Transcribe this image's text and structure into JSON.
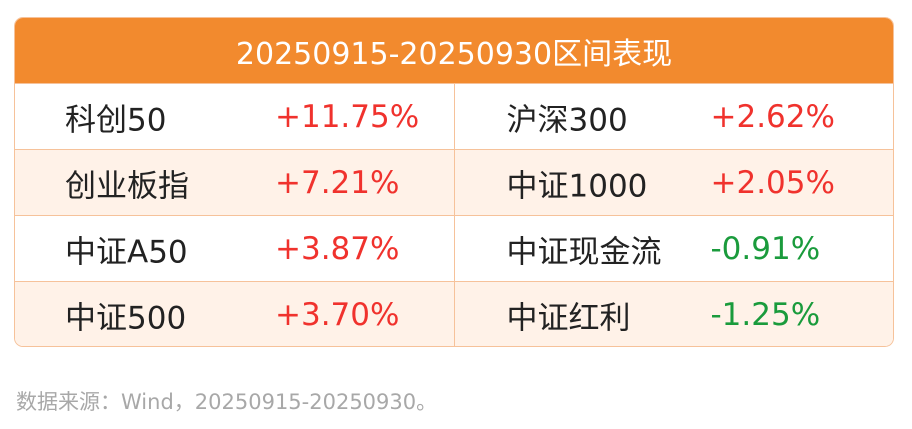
{
  "header": {
    "title": "20250915-20250930区间表现"
  },
  "table": {
    "rows": [
      [
        "科创50",
        "+11.75%",
        "沪深300",
        "+2.62%"
      ],
      [
        "创业板指",
        "+7.21%",
        "中证1000",
        "+2.05%"
      ],
      [
        "中证A50",
        "+3.87%",
        "中证现金流",
        "-0.91%"
      ],
      [
        "中证500",
        "+3.70%",
        "中证红利",
        "-1.25%"
      ]
    ]
  },
  "footer": {
    "source": "数据来源：Wind，20250915-20250930。"
  }
}
